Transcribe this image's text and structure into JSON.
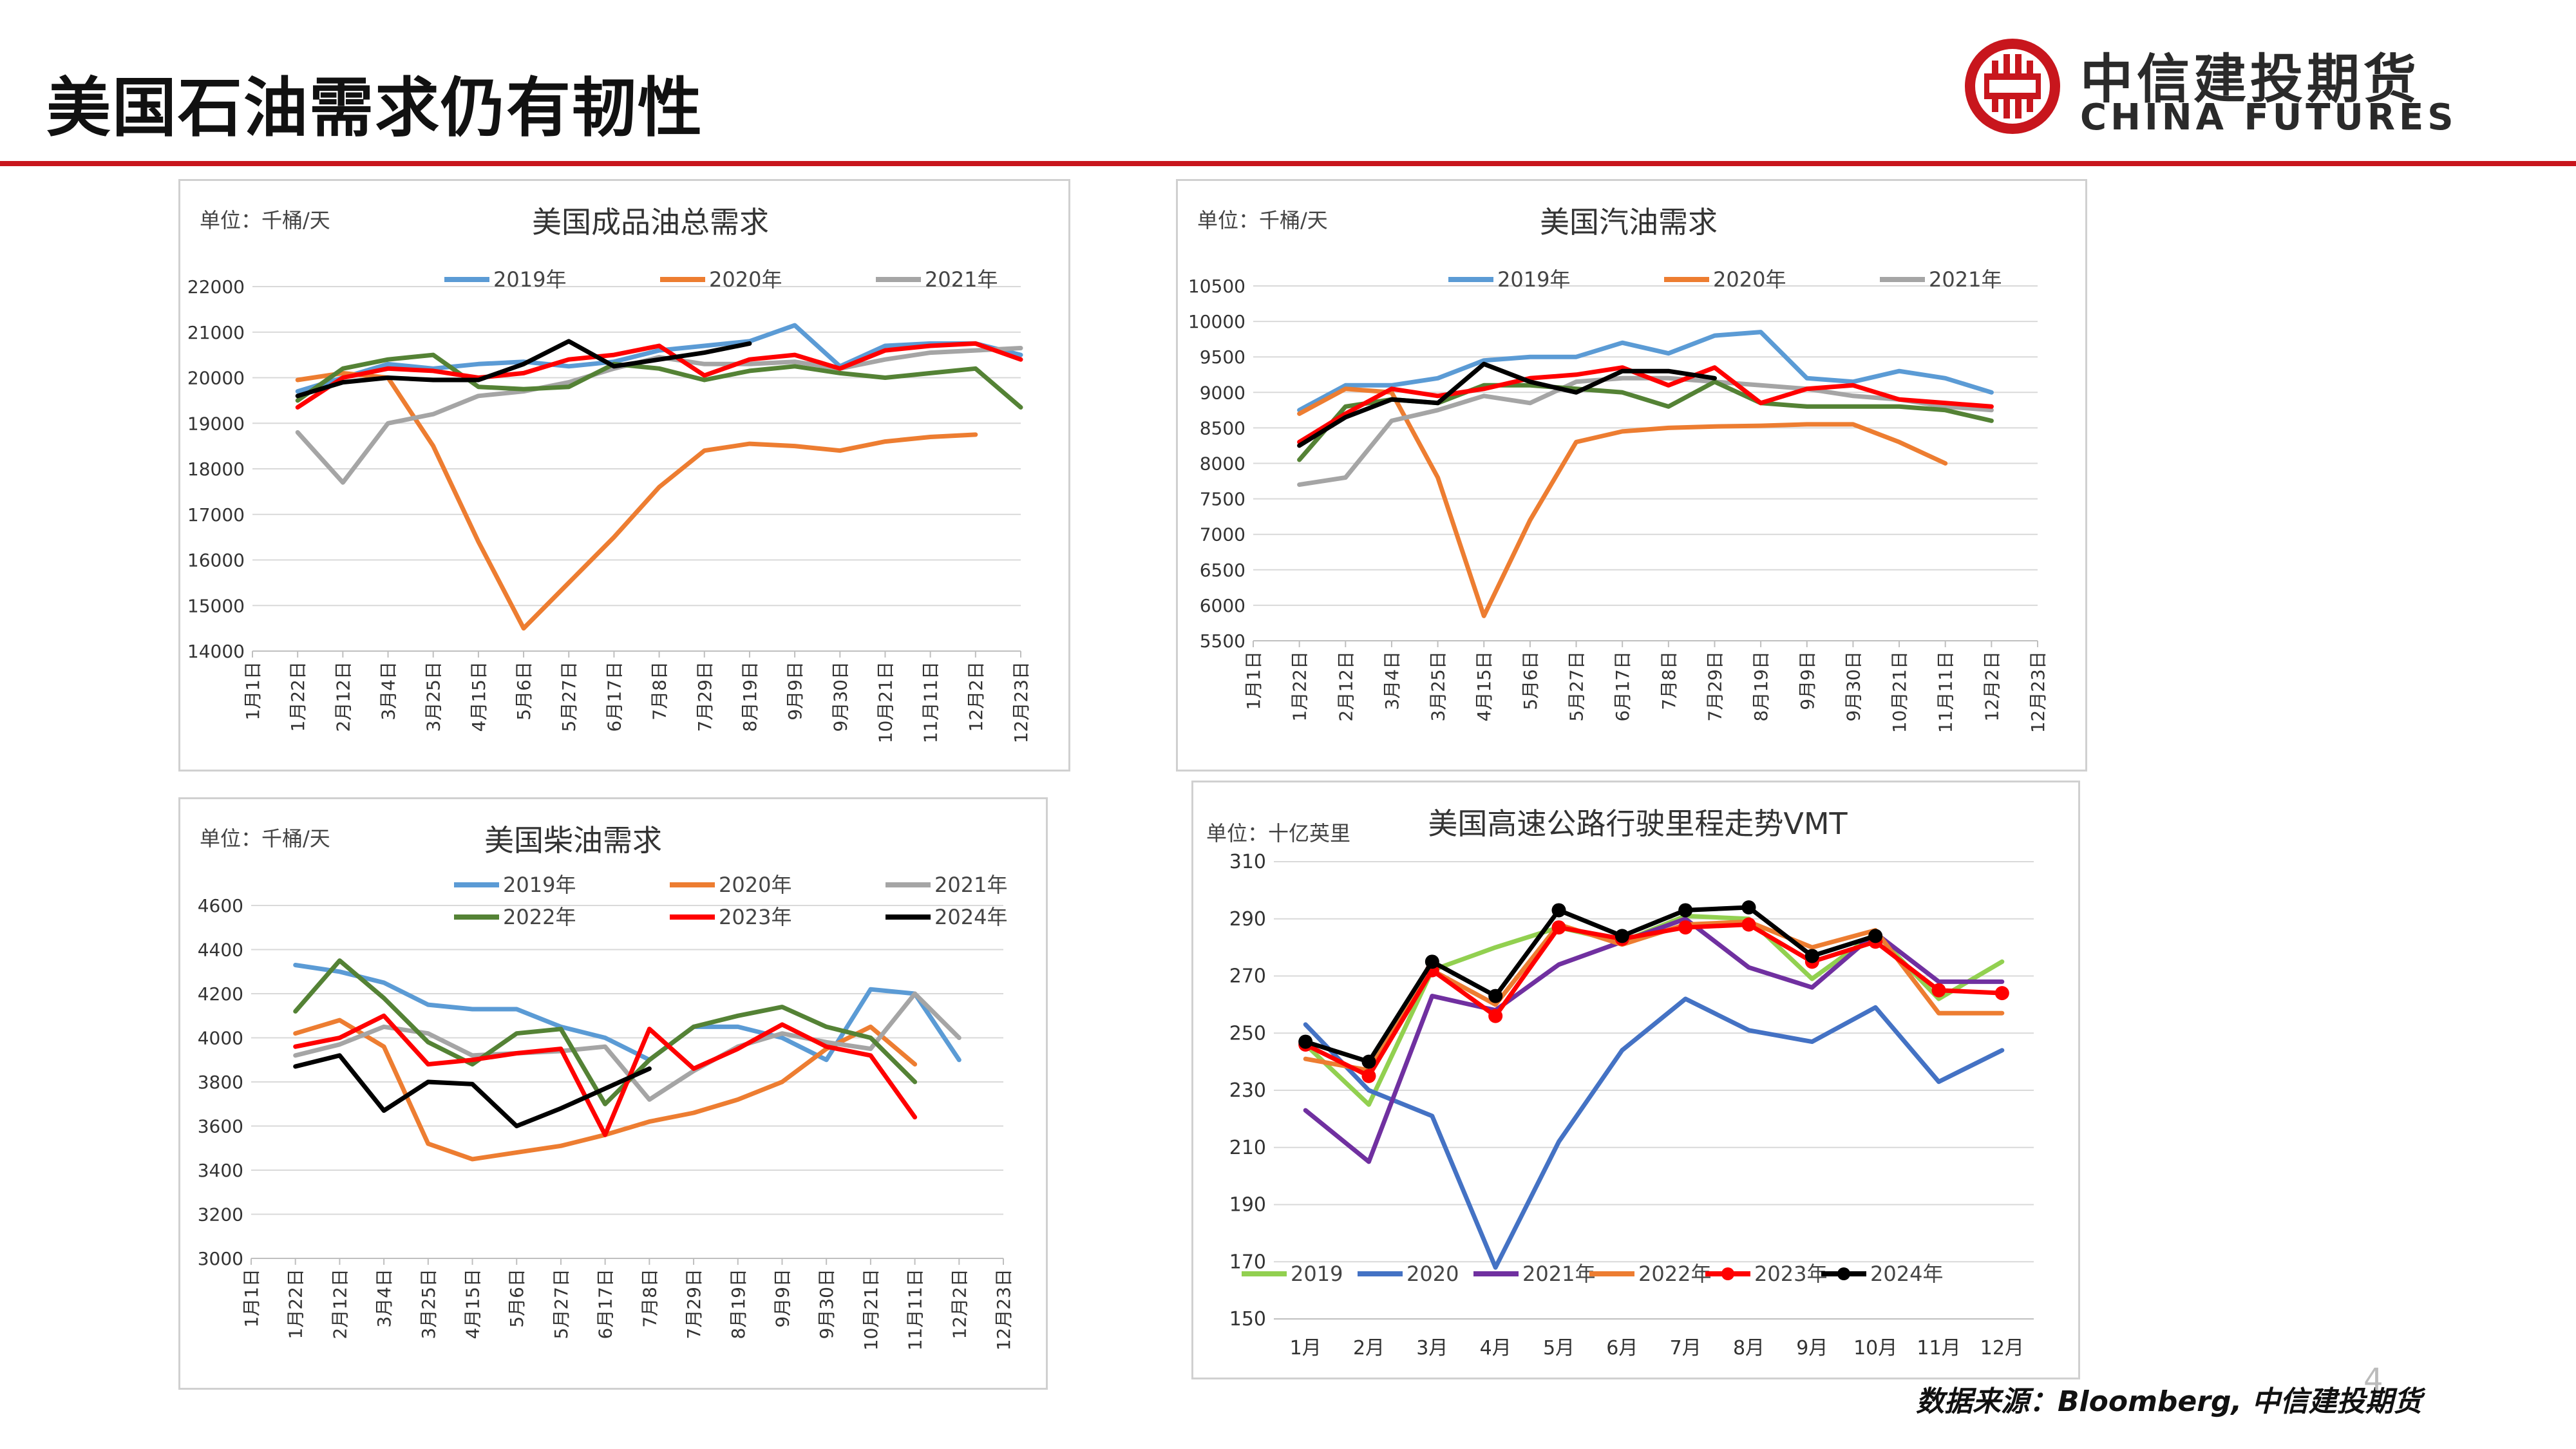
{
  "page": {
    "title": "美国石油需求仍有韧性",
    "logo_cn": "中信建投期货",
    "logo_en": "CHINA FUTURES",
    "source": "数据来源：Bloomberg, 中信建投期货",
    "page_number": "4",
    "brand_color": "#c8161d"
  },
  "chart_data": [
    {
      "type": "line",
      "title": "美国成品油总需求",
      "unit": "单位：千桶/天",
      "categories": [
        "1月1日",
        "1月22日",
        "2月12日",
        "3月4日",
        "3月25日",
        "4月15日",
        "5月6日",
        "5月27日",
        "6月17日",
        "7月8日",
        "7月29日",
        "8月19日",
        "9月9日",
        "9月30日",
        "10月21日",
        "11月11日",
        "12月2日",
        "12月23日"
      ],
      "ylim": [
        14000,
        22000
      ],
      "yticks": [
        14000,
        15000,
        16000,
        17000,
        18000,
        19000,
        20000,
        21000,
        22000
      ],
      "legend": [
        [
          "2019年",
          "2020年",
          "2021年"
        ]
      ],
      "series": [
        {
          "name": "2019年",
          "color": "#5b9bd5",
          "values": [
            null,
            19700,
            20000,
            20300,
            20200,
            20300,
            20350,
            20250,
            20350,
            20600,
            20700,
            20800,
            21150,
            20250,
            20700,
            20750,
            20750,
            20500
          ]
        },
        {
          "name": "2020年",
          "color": "#ed7d31",
          "values": [
            null,
            19950,
            20100,
            20000,
            18500,
            16400,
            14500,
            15500,
            16500,
            17600,
            18400,
            18550,
            18500,
            18400,
            18600,
            18700,
            18750,
            null
          ]
        },
        {
          "name": "2021年",
          "color": "#a5a5a5",
          "values": [
            null,
            18800,
            17700,
            19000,
            19200,
            19600,
            19700,
            19900,
            20200,
            20450,
            20300,
            20300,
            20350,
            20200,
            20400,
            20550,
            20600,
            20650
          ]
        },
        {
          "name": "2022年",
          "color": "#548235",
          "values": [
            null,
            19500,
            20200,
            20400,
            20500,
            19800,
            19750,
            19800,
            20300,
            20200,
            19950,
            20150,
            20250,
            20100,
            20000,
            20100,
            20200,
            19350
          ]
        },
        {
          "name": "2023年",
          "color": "#ff0000",
          "values": [
            null,
            19350,
            20000,
            20200,
            20150,
            20000,
            20100,
            20400,
            20500,
            20700,
            20050,
            20400,
            20500,
            20200,
            20600,
            20700,
            20750,
            20400
          ]
        },
        {
          "name": "2024年",
          "color": "#000000",
          "values": [
            null,
            19600,
            19900,
            20000,
            19950,
            19950,
            20300,
            20800,
            20250,
            20400,
            20550,
            20750,
            null,
            null,
            null,
            null,
            null,
            null
          ]
        }
      ]
    },
    {
      "type": "line",
      "title": "美国汽油需求",
      "unit": "单位：千桶/天",
      "categories": [
        "1月1日",
        "1月22日",
        "2月12日",
        "3月4日",
        "3月25日",
        "4月15日",
        "5月6日",
        "5月27日",
        "6月17日",
        "7月8日",
        "7月29日",
        "8月19日",
        "9月9日",
        "9月30日",
        "10月21日",
        "11月11日",
        "12月2日",
        "12月23日"
      ],
      "ylim": [
        5500,
        10500
      ],
      "yticks": [
        5500,
        6000,
        6500,
        7000,
        7500,
        8000,
        8500,
        9000,
        9500,
        10000,
        10500
      ],
      "legend": [
        [
          "2019年",
          "2020年",
          "2021年"
        ]
      ],
      "series": [
        {
          "name": "2019年",
          "color": "#5b9bd5",
          "values": [
            null,
            8750,
            9100,
            9100,
            9200,
            9450,
            9500,
            9500,
            9700,
            9550,
            9800,
            9850,
            9200,
            9150,
            9300,
            9200,
            9000,
            null
          ]
        },
        {
          "name": "2020年",
          "color": "#ed7d31",
          "values": [
            null,
            8700,
            9050,
            9000,
            7800,
            5850,
            7200,
            8300,
            8450,
            8500,
            8520,
            8530,
            8550,
            8550,
            8300,
            8000,
            null,
            null
          ]
        },
        {
          "name": "2021年",
          "color": "#a5a5a5",
          "values": [
            null,
            7700,
            7800,
            8600,
            8750,
            8950,
            8850,
            9150,
            9200,
            9200,
            9150,
            9100,
            9050,
            8950,
            8900,
            8800,
            8750,
            null
          ]
        },
        {
          "name": "2022年",
          "color": "#548235",
          "values": [
            null,
            8050,
            8800,
            8900,
            8850,
            9100,
            9100,
            9050,
            9000,
            8800,
            9150,
            8850,
            8800,
            8800,
            8800,
            8750,
            8600,
            null
          ]
        },
        {
          "name": "2023年",
          "color": "#ff0000",
          "values": [
            null,
            8300,
            8700,
            9050,
            8950,
            9050,
            9200,
            9250,
            9350,
            9100,
            9350,
            8850,
            9050,
            9100,
            8900,
            8850,
            8800,
            null
          ]
        },
        {
          "name": "2024年",
          "color": "#000000",
          "values": [
            null,
            8250,
            8650,
            8900,
            8850,
            9400,
            9150,
            9000,
            9300,
            9300,
            9200,
            null,
            null,
            null,
            null,
            null,
            null,
            null
          ]
        }
      ]
    },
    {
      "type": "line",
      "title": "美国柴油需求",
      "unit": "单位：千桶/天",
      "categories": [
        "1月1日",
        "1月22日",
        "2月12日",
        "3月4日",
        "3月25日",
        "4月15日",
        "5月6日",
        "5月27日",
        "6月17日",
        "7月8日",
        "7月29日",
        "8月19日",
        "9月9日",
        "9月30日",
        "10月21日",
        "11月11日",
        "12月2日",
        "12月23日"
      ],
      "ylim": [
        3000,
        4600
      ],
      "yticks": [
        3000,
        3200,
        3400,
        3600,
        3800,
        4000,
        4200,
        4400,
        4600
      ],
      "legend": [
        [
          "2019年",
          "2020年",
          "2021年"
        ],
        [
          "2022年",
          "2023年",
          "2024年"
        ]
      ],
      "series": [
        {
          "name": "2019年",
          "color": "#5b9bd5",
          "values": [
            null,
            4330,
            4300,
            4250,
            4150,
            4130,
            4130,
            4050,
            4000,
            3900,
            4050,
            4050,
            4000,
            3900,
            4220,
            4200,
            3900,
            null
          ]
        },
        {
          "name": "2020年",
          "color": "#ed7d31",
          "values": [
            null,
            4020,
            4080,
            3960,
            3520,
            3450,
            3480,
            3510,
            3560,
            3620,
            3660,
            3720,
            3800,
            3950,
            4050,
            3880,
            null,
            null
          ]
        },
        {
          "name": "2021年",
          "color": "#a5a5a5",
          "values": [
            null,
            3920,
            3970,
            4050,
            4020,
            3920,
            3930,
            3940,
            3960,
            3720,
            3850,
            3960,
            4020,
            3980,
            3950,
            4200,
            4000,
            null
          ]
        },
        {
          "name": "2022年",
          "color": "#548235",
          "values": [
            null,
            4120,
            4350,
            4180,
            3980,
            3880,
            4020,
            4040,
            3700,
            3900,
            4050,
            4100,
            4140,
            4050,
            4000,
            3800,
            null,
            null
          ]
        },
        {
          "name": "2023年",
          "color": "#ff0000",
          "values": [
            null,
            3960,
            4000,
            4100,
            3880,
            3900,
            3930,
            3950,
            3560,
            4040,
            3860,
            3950,
            4060,
            3960,
            3920,
            3640,
            null,
            null
          ]
        },
        {
          "name": "2024年",
          "color": "#000000",
          "values": [
            null,
            3870,
            3920,
            3670,
            3800,
            3790,
            3600,
            3680,
            3770,
            3860,
            null,
            null,
            null,
            null,
            null,
            null,
            null,
            null
          ]
        }
      ]
    },
    {
      "type": "line",
      "title": "美国高速公路行驶里程走势VMT",
      "unit": "单位：十亿英里",
      "categories": [
        "1月",
        "2月",
        "3月",
        "4月",
        "5月",
        "6月",
        "7月",
        "8月",
        "9月",
        "10月",
        "11月",
        "12月"
      ],
      "ylim": [
        150,
        310
      ],
      "yticks": [
        150,
        170,
        190,
        210,
        230,
        250,
        270,
        290,
        310
      ],
      "legend": [
        [
          "2019",
          "2020",
          "2021年",
          "2022年",
          "2023年",
          "2024年"
        ]
      ],
      "series": [
        {
          "name": "2019",
          "color": "#92d050",
          "values": [
            246,
            225,
            272,
            280,
            287,
            282,
            291,
            290,
            269,
            285,
            262,
            275
          ],
          "markers": false
        },
        {
          "name": "2020",
          "color": "#4472c4",
          "values": [
            253,
            230,
            221,
            168,
            212,
            244,
            262,
            251,
            247,
            259,
            233,
            244
          ],
          "markers": false
        },
        {
          "name": "2021年",
          "color": "#7030a0",
          "values": [
            223,
            205,
            263,
            258,
            274,
            282,
            290,
            273,
            266,
            285,
            268,
            268
          ],
          "markers": false
        },
        {
          "name": "2022年",
          "color": "#ed7d31",
          "values": [
            241,
            237,
            272,
            260,
            288,
            281,
            288,
            289,
            280,
            286,
            257,
            257
          ],
          "markers": false
        },
        {
          "name": "2023年",
          "color": "#ff0000",
          "values": [
            246,
            235,
            272,
            256,
            287,
            283,
            287,
            288,
            275,
            282,
            265,
            264
          ],
          "markers": true
        },
        {
          "name": "2024年",
          "color": "#000000",
          "values": [
            247,
            240,
            275,
            263,
            293,
            284,
            293,
            294,
            277,
            284,
            null,
            null
          ],
          "markers": true
        }
      ]
    }
  ]
}
